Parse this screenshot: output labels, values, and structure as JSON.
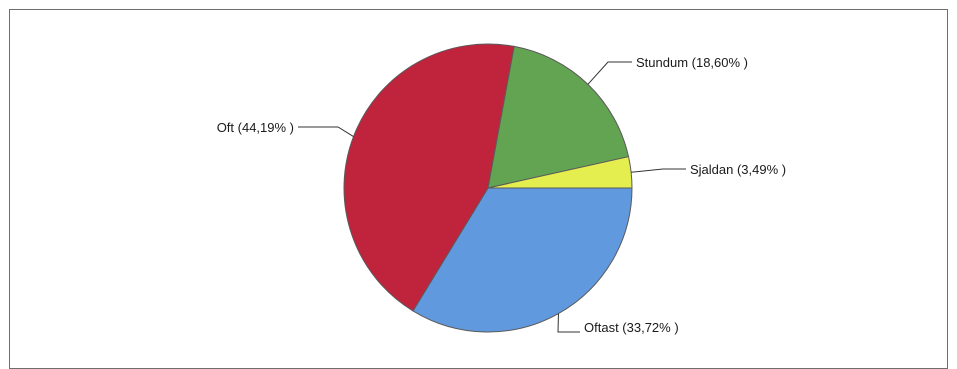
{
  "chart_data": {
    "type": "pie",
    "title": "",
    "slices": [
      {
        "label": "Oftast (33,72% )",
        "value": 33.72,
        "color": "#6199DE"
      },
      {
        "label": "Oft (44,19% )",
        "value": 44.19,
        "color": "#C0243D"
      },
      {
        "label": "Stundum (18,60% )",
        "value": 18.6,
        "color": "#62A452"
      },
      {
        "label": "Sjaldan (3,49% )",
        "value": 3.49,
        "color": "#E4EE4E"
      }
    ],
    "start": "3 o'clock",
    "direction": "clockwise",
    "legend": "none"
  }
}
